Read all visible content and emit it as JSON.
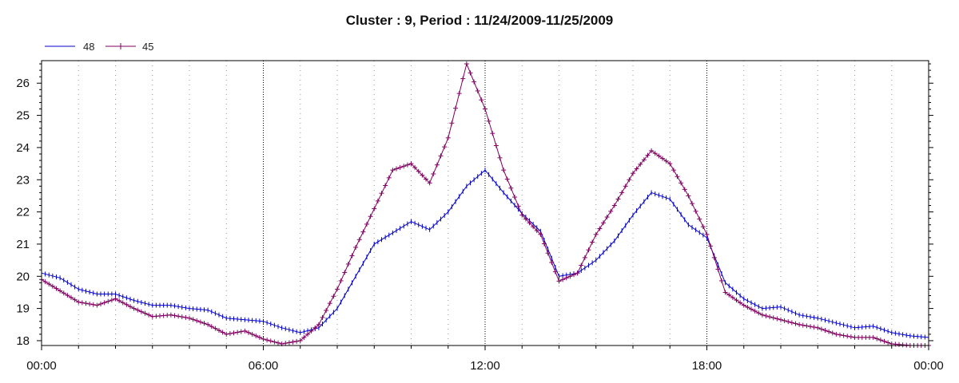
{
  "chart_data": {
    "type": "line",
    "title": "Cluster : 9, Period : 11/24/2009-11/25/2009",
    "xlabel": "",
    "ylabel": "",
    "x_ticks": [
      "00:00",
      "06:00",
      "12:00",
      "18:00",
      "00:00"
    ],
    "y_ticks": [
      "18",
      "19",
      "20",
      "21",
      "22",
      "23",
      "24",
      "25",
      "26"
    ],
    "xlim_hours": [
      0,
      24
    ],
    "ylim": [
      17.85,
      26.7
    ],
    "grid": {
      "x": true,
      "y": false,
      "style": "dotted"
    },
    "legend_position": "top-left",
    "series": [
      {
        "name": "48",
        "color": "#0000cc",
        "marker": "tick",
        "x": [
          0,
          0.5,
          1,
          1.5,
          2,
          2.5,
          3,
          3.5,
          4,
          4.5,
          5,
          5.5,
          6,
          6.5,
          7,
          7.5,
          8,
          8.5,
          9,
          9.5,
          10,
          10.5,
          11,
          11.5,
          12,
          12.5,
          13,
          13.5,
          14,
          14.5,
          15,
          15.5,
          16,
          16.5,
          17,
          17.5,
          18,
          18.5,
          19,
          19.5,
          20,
          20.5,
          21,
          21.5,
          22,
          22.5,
          23,
          23.5,
          24
        ],
        "y": [
          20.1,
          19.95,
          19.6,
          19.45,
          19.45,
          19.25,
          19.1,
          19.1,
          19.0,
          18.95,
          18.7,
          18.65,
          18.6,
          18.4,
          18.25,
          18.4,
          19.0,
          20.0,
          21.0,
          21.35,
          21.7,
          21.45,
          22.0,
          22.8,
          23.3,
          22.6,
          21.95,
          21.4,
          20.0,
          20.1,
          20.5,
          21.1,
          21.9,
          22.6,
          22.4,
          21.6,
          21.2,
          19.8,
          19.3,
          19.0,
          19.05,
          18.8,
          18.7,
          18.55,
          18.4,
          18.45,
          18.25,
          18.15,
          18.1
        ]
      },
      {
        "name": "45",
        "color": "#800060",
        "marker": "plus",
        "x": [
          0,
          0.5,
          1,
          1.5,
          2,
          2.5,
          3,
          3.5,
          4,
          4.5,
          5,
          5.5,
          6,
          6.5,
          7,
          7.5,
          8,
          8.5,
          9,
          9.5,
          10,
          10.5,
          11,
          11.5,
          12,
          12.5,
          13,
          13.5,
          14,
          14.5,
          15,
          15.5,
          16,
          16.5,
          17,
          17.5,
          18,
          18.5,
          19,
          19.5,
          20,
          20.5,
          21,
          21.5,
          22,
          22.5,
          23,
          23.5,
          24
        ],
        "y": [
          19.9,
          19.55,
          19.2,
          19.1,
          19.3,
          19.0,
          18.75,
          18.8,
          18.7,
          18.5,
          18.2,
          18.3,
          18.05,
          17.9,
          18.0,
          18.5,
          19.6,
          20.9,
          22.1,
          23.3,
          23.5,
          22.9,
          24.3,
          26.6,
          25.2,
          23.3,
          21.9,
          21.3,
          19.85,
          20.1,
          21.3,
          22.2,
          23.2,
          23.9,
          23.5,
          22.5,
          21.3,
          19.5,
          19.1,
          18.8,
          18.65,
          18.5,
          18.4,
          18.2,
          18.1,
          18.1,
          17.9,
          17.85,
          17.85
        ]
      }
    ]
  }
}
